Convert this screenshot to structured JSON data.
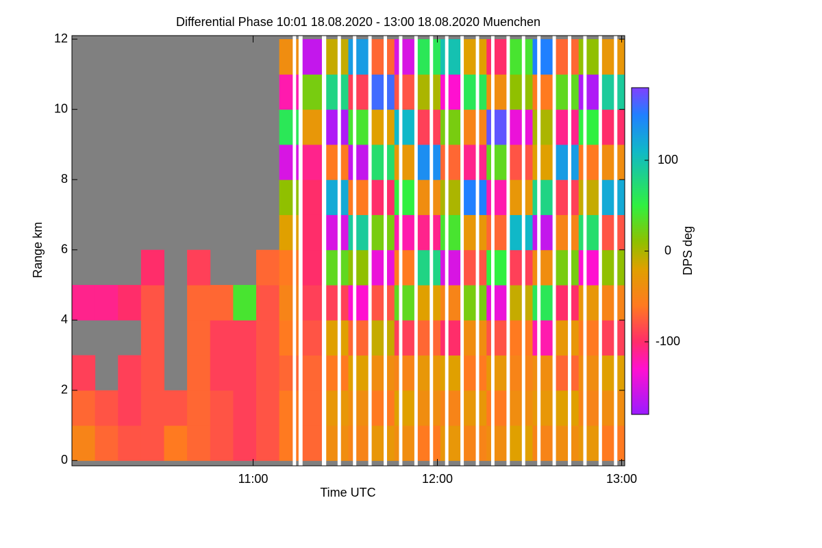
{
  "chart_data": {
    "type": "heatmap",
    "title": "Differential Phase   10:01 18.08.2020 - 13:00 18.08.2020 Muenchen",
    "xlabel": "Time UTC",
    "ylabel": "Range km",
    "colorbar_label": "DPS deg",
    "xlim": [
      601,
      781
    ],
    "ylim": [
      -0.15,
      12.1
    ],
    "xticks": [
      {
        "value": 660,
        "label": "11:00"
      },
      {
        "value": 720,
        "label": "12:00"
      },
      {
        "value": 780,
        "label": "13:00"
      }
    ],
    "yticks": [
      0,
      2,
      4,
      6,
      8,
      10,
      12
    ],
    "clim": [
      -180,
      180
    ],
    "cticks": [
      100,
      0,
      -100
    ],
    "colorscale": [
      [
        -180,
        "#9b1cff"
      ],
      [
        -130,
        "#ff10d0"
      ],
      [
        -100,
        "#ff2d6a"
      ],
      [
        -60,
        "#ff7a20"
      ],
      [
        -20,
        "#e0a000"
      ],
      [
        10,
        "#90c000"
      ],
      [
        50,
        "#30f040"
      ],
      [
        110,
        "#10b8c8"
      ],
      [
        150,
        "#2080ff"
      ],
      [
        180,
        "#8040ff"
      ]
    ],
    "missing_color": "#808080",
    "x_bins": [
      601,
      608.5,
      616,
      623.5,
      631,
      638.5,
      646,
      653.5,
      661,
      668.5,
      676,
      683.5,
      691,
      698.5,
      706,
      713.5,
      721,
      728.5,
      736,
      743.5,
      751,
      758.5,
      766,
      773.5,
      781
    ],
    "y_bins": [
      0,
      1,
      2,
      3,
      4,
      5,
      6,
      7,
      8,
      9,
      10,
      11,
      12
    ],
    "z": [
      [
        -50,
        -70,
        -90,
        null,
        -110,
        null,
        null,
        null,
        null,
        null,
        null,
        null
      ],
      [
        -70,
        -80,
        null,
        null,
        -110,
        null,
        null,
        null,
        null,
        null,
        null,
        null
      ],
      [
        -80,
        -90,
        -90,
        null,
        -100,
        null,
        null,
        null,
        null,
        null,
        null,
        null
      ],
      [
        -80,
        -80,
        -80,
        -80,
        -80,
        -100,
        null,
        null,
        null,
        null,
        null,
        null
      ],
      [
        -60,
        -80,
        null,
        null,
        null,
        null,
        null,
        null,
        null,
        null,
        null,
        null
      ],
      [
        -70,
        -70,
        -70,
        -70,
        -70,
        -90,
        null,
        null,
        null,
        null,
        null,
        null
      ],
      [
        -80,
        -80,
        -90,
        -90,
        -70,
        null,
        null,
        null,
        null,
        null,
        null,
        null
      ],
      [
        -90,
        -90,
        -90,
        -90,
        40,
        null,
        null,
        null,
        null,
        null,
        null,
        null
      ],
      [
        -80,
        -80,
        -80,
        -80,
        -80,
        -70,
        null,
        null,
        null,
        null,
        null,
        null
      ],
      [
        -60,
        -60,
        -70,
        -60,
        -50,
        -60,
        -20,
        10,
        -150,
        60,
        -120,
        -40
      ],
      [
        -70,
        -70,
        -70,
        -80,
        -90,
        -100,
        -100,
        -100,
        -110,
        -30,
        20,
        -160
      ],
      [
        -40,
        -30,
        -60,
        -20,
        -90,
        30,
        -150,
        120,
        -60,
        -170,
        80,
        -10
      ],
      [
        -50,
        -40,
        -20,
        -70,
        -130,
        10,
        90,
        -60,
        -160,
        40,
        -90,
        130
      ],
      [
        -30,
        -60,
        -40,
        -10,
        -80,
        -140,
        20,
        -100,
        70,
        -20,
        160,
        -70
      ],
      [
        -40,
        -20,
        -50,
        -90,
        30,
        -60,
        -120,
        50,
        -30,
        110,
        -80,
        -150
      ],
      [
        -60,
        -40,
        -30,
        -70,
        -20,
        80,
        -110,
        -40,
        140,
        -90,
        0,
        60
      ],
      [
        -30,
        -50,
        -20,
        -100,
        -50,
        -150,
        40,
        0,
        -70,
        20,
        -130,
        100
      ],
      [
        -50,
        -30,
        -60,
        -40,
        20,
        -80,
        -30,
        150,
        -110,
        -50,
        60,
        -20
      ],
      [
        -40,
        -60,
        -30,
        -80,
        -140,
        50,
        -70,
        -120,
        30,
        170,
        -40,
        -100
      ],
      [
        -20,
        -40,
        -50,
        -60,
        -10,
        -90,
        110,
        -30,
        -80,
        -140,
        10,
        40
      ],
      [
        -50,
        -30,
        -40,
        -120,
        60,
        -40,
        -160,
        80,
        -20,
        0,
        -60,
        150
      ],
      [
        -40,
        -20,
        -70,
        -30,
        -100,
        20,
        -50,
        -90,
        130,
        -110,
        30,
        -70
      ],
      [
        -30,
        -50,
        -40,
        -60,
        -30,
        -130,
        70,
        -10,
        -60,
        50,
        -170,
        10
      ],
      [
        -60,
        -40,
        -20,
        -90,
        -50,
        10,
        -80,
        120,
        -40,
        -100,
        90,
        -30
      ]
    ],
    "no_data": [
      [
        672.9,
        674.0
      ],
      [
        674.8,
        676.1
      ],
      [
        682.4,
        683.8
      ],
      [
        687.5,
        688.6
      ],
      [
        692.5,
        693.6
      ],
      [
        697.5,
        698.6
      ],
      [
        702.5,
        703.6
      ],
      [
        707.5,
        708.6
      ],
      [
        712.5,
        713.6
      ],
      [
        717.5,
        718.6
      ],
      [
        722.5,
        723.6
      ],
      [
        727.5,
        728.6
      ],
      [
        732.5,
        733.6
      ],
      [
        737.5,
        738.6
      ],
      [
        742.5,
        743.6
      ],
      [
        747.5,
        748.6
      ],
      [
        752.5,
        753.6
      ],
      [
        757.5,
        758.6
      ],
      [
        762.5,
        763.6
      ],
      [
        767.5,
        768.6
      ],
      [
        772.5,
        773.6
      ],
      [
        777.5,
        778.6
      ]
    ]
  }
}
